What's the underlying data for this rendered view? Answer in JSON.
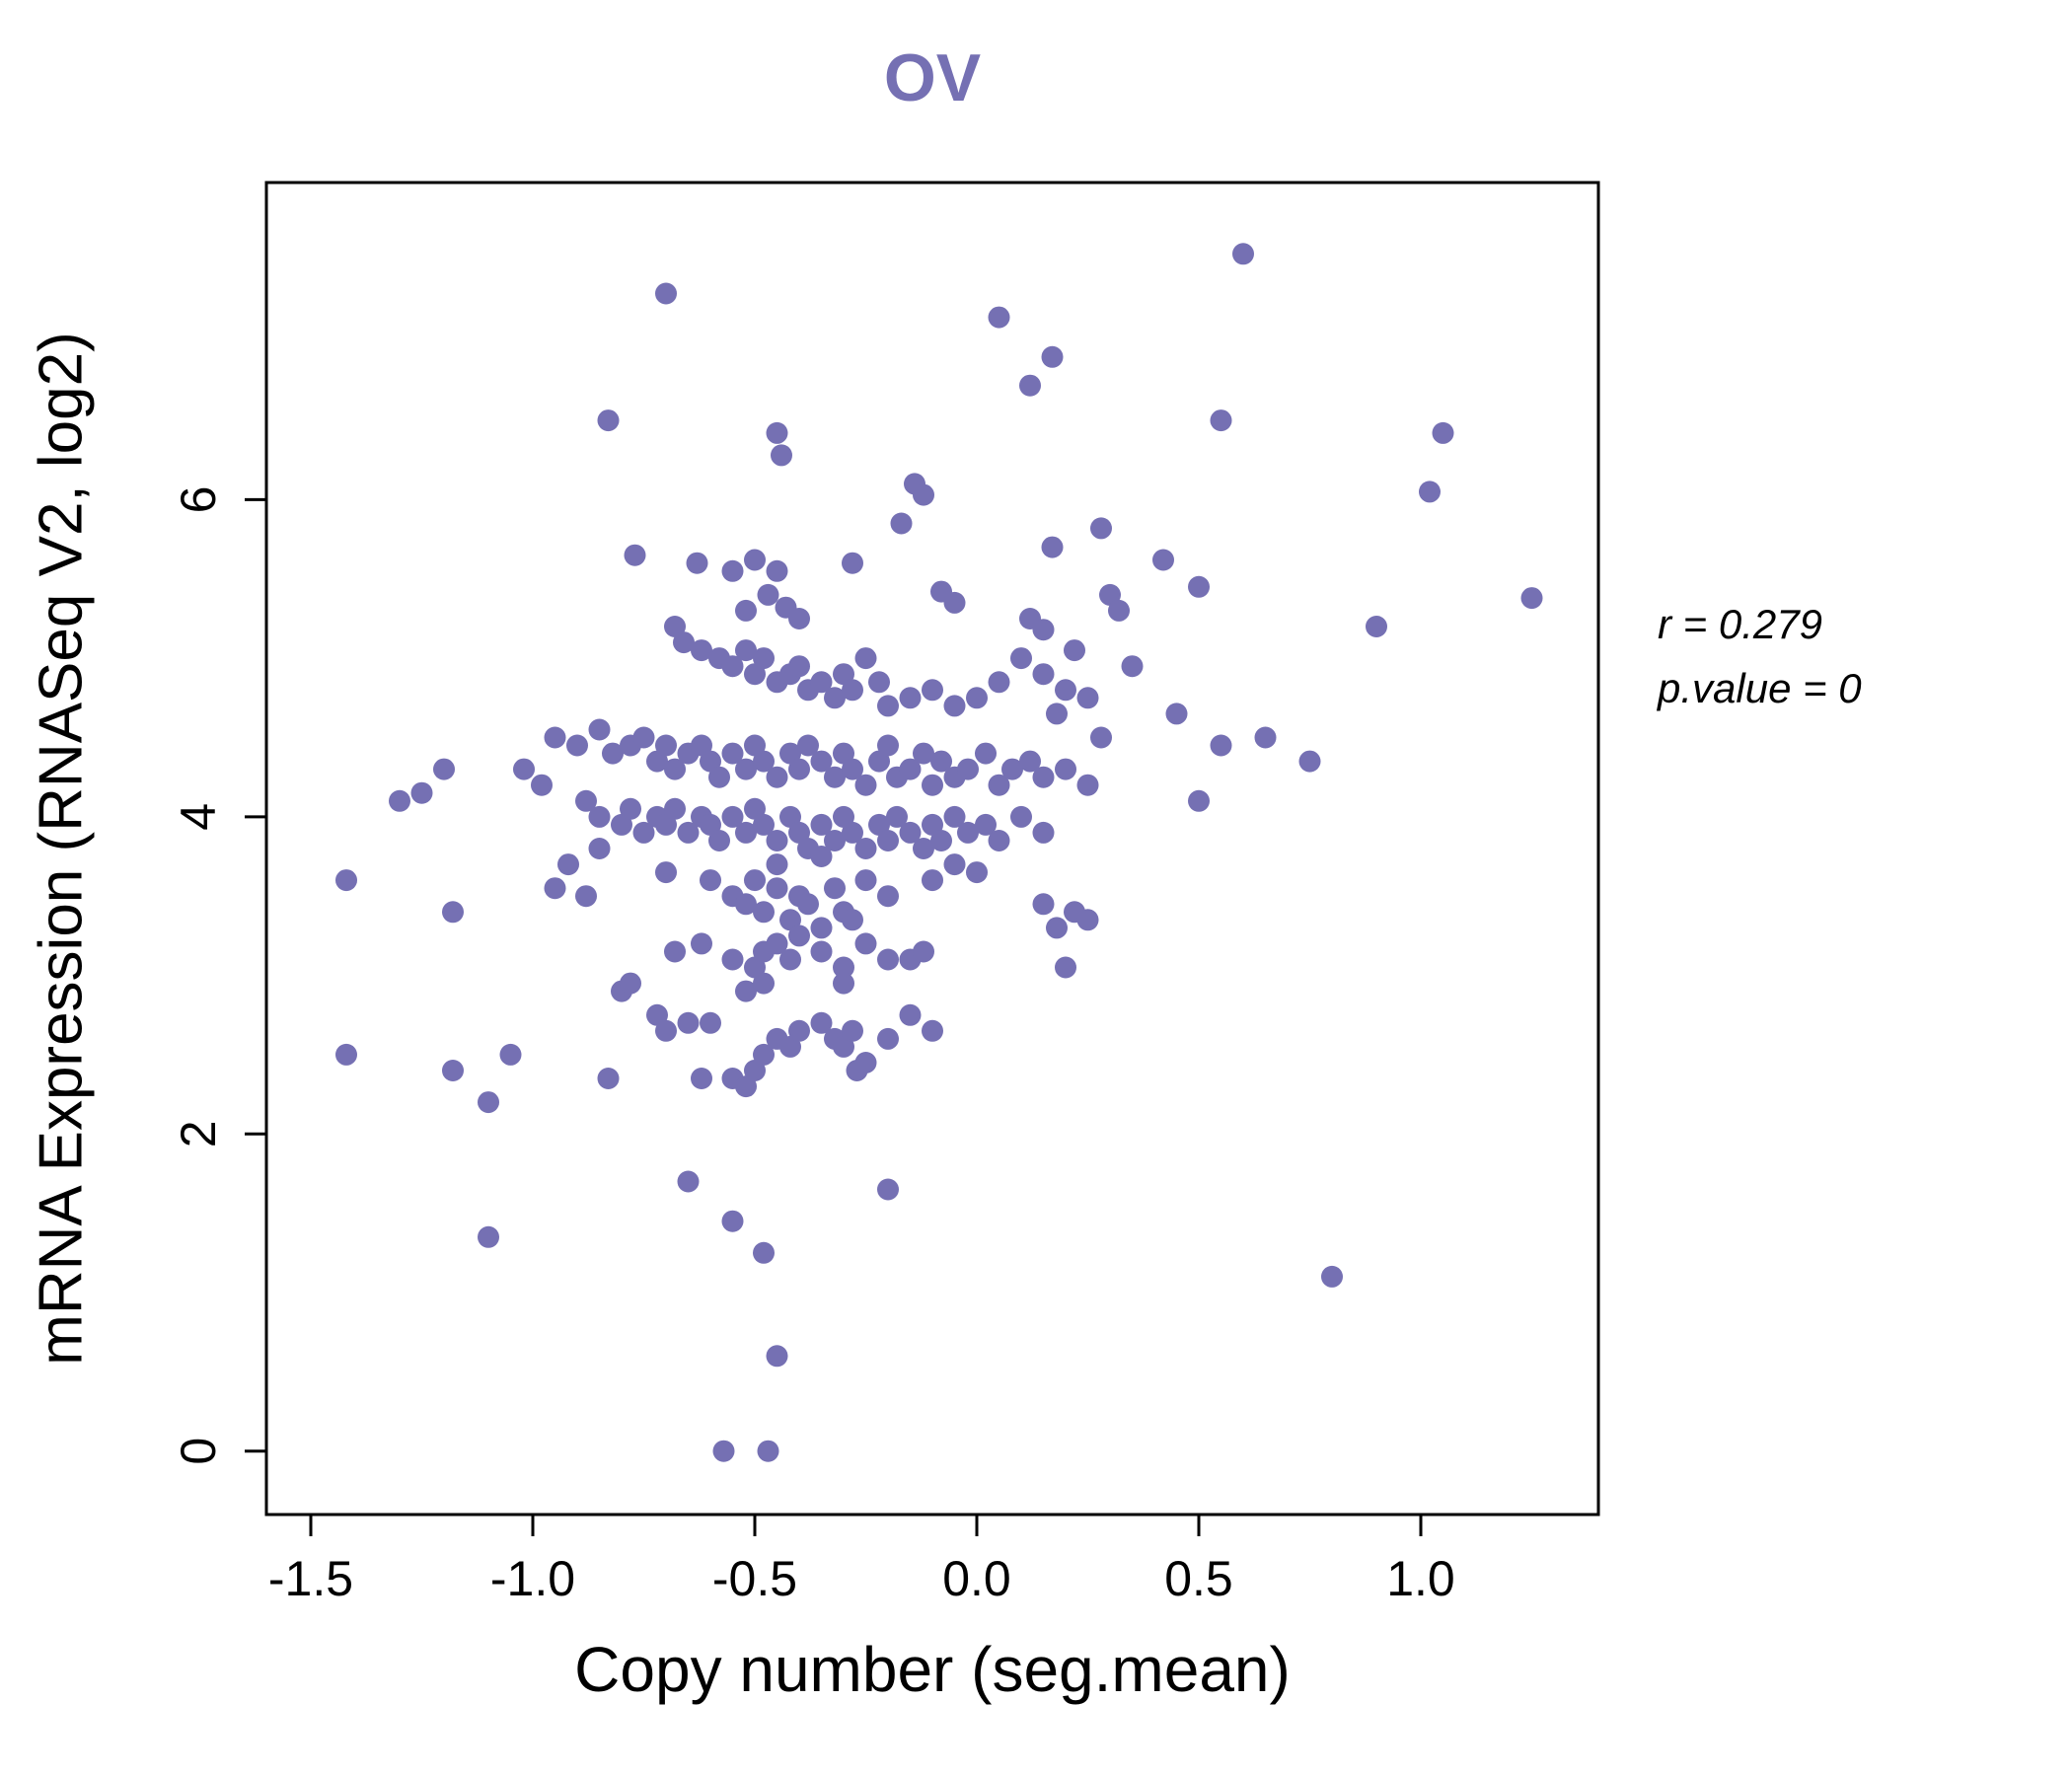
{
  "chart_data": {
    "type": "scatter",
    "title": "OV",
    "xlabel": "Copy number (seg.mean)",
    "ylabel": "mRNA Expression (RNASeq V2, log2)",
    "xlim": [
      -1.6,
      1.4
    ],
    "ylim": [
      -0.4,
      8.0
    ],
    "xticks": [
      -1.5,
      -1.0,
      -0.5,
      0.0,
      0.5,
      1.0
    ],
    "xtick_labels": [
      "-1.5",
      "-1.0",
      "-0.5",
      "0.0",
      "0.5",
      "1.0"
    ],
    "yticks": [
      0,
      2,
      4,
      6
    ],
    "ytick_labels": [
      "0",
      "2",
      "4",
      "6"
    ],
    "grid": false,
    "legend": "none",
    "point_color": "#7570b3",
    "title_color": "#7570b3",
    "annotations": [
      "r = 0.279",
      "p.value = 0"
    ],
    "points": [
      [
        0.6,
        7.55
      ],
      [
        -0.7,
        7.3
      ],
      [
        0.05,
        7.15
      ],
      [
        0.17,
        6.9
      ],
      [
        0.12,
        6.72
      ],
      [
        -0.83,
        6.5
      ],
      [
        0.55,
        6.5
      ],
      [
        1.05,
        6.42
      ],
      [
        -0.45,
        6.42
      ],
      [
        -0.44,
        6.28
      ],
      [
        1.02,
        6.05
      ],
      [
        -0.14,
        6.1
      ],
      [
        -0.12,
        6.03
      ],
      [
        -0.17,
        5.85
      ],
      [
        0.28,
        5.82
      ],
      [
        0.17,
        5.7
      ],
      [
        0.42,
        5.62
      ],
      [
        -0.77,
        5.65
      ],
      [
        -0.63,
        5.6
      ],
      [
        -0.5,
        5.62
      ],
      [
        -0.55,
        5.55
      ],
      [
        -0.45,
        5.55
      ],
      [
        -0.28,
        5.6
      ],
      [
        0.5,
        5.45
      ],
      [
        0.3,
        5.4
      ],
      [
        -0.08,
        5.42
      ],
      [
        -0.05,
        5.35
      ],
      [
        -0.47,
        5.4
      ],
      [
        -0.52,
        5.3
      ],
      [
        -0.43,
        5.32
      ],
      [
        -0.4,
        5.25
      ],
      [
        0.12,
        5.25
      ],
      [
        0.15,
        5.18
      ],
      [
        0.9,
        5.2
      ],
      [
        1.25,
        5.38
      ],
      [
        0.32,
        5.3
      ],
      [
        -0.68,
        5.2
      ],
      [
        -0.66,
        5.1
      ],
      [
        -0.62,
        5.05
      ],
      [
        -0.58,
        5.0
      ],
      [
        -0.55,
        4.95
      ],
      [
        -0.52,
        5.05
      ],
      [
        -0.5,
        4.9
      ],
      [
        -0.48,
        5.0
      ],
      [
        -0.45,
        4.85
      ],
      [
        -0.42,
        4.9
      ],
      [
        -0.4,
        4.95
      ],
      [
        -0.38,
        4.8
      ],
      [
        -0.35,
        4.85
      ],
      [
        -0.32,
        4.75
      ],
      [
        -0.3,
        4.9
      ],
      [
        -0.28,
        4.8
      ],
      [
        -0.25,
        5.0
      ],
      [
        -0.22,
        4.85
      ],
      [
        -0.2,
        4.7
      ],
      [
        -0.15,
        4.75
      ],
      [
        -0.1,
        4.8
      ],
      [
        -0.05,
        4.7
      ],
      [
        0.0,
        4.75
      ],
      [
        0.05,
        4.85
      ],
      [
        0.1,
        5.0
      ],
      [
        0.15,
        4.9
      ],
      [
        0.2,
        4.8
      ],
      [
        0.22,
        5.05
      ],
      [
        0.25,
        4.75
      ],
      [
        0.35,
        4.95
      ],
      [
        0.18,
        4.65
      ],
      [
        0.28,
        4.5
      ],
      [
        0.65,
        4.5
      ],
      [
        0.75,
        4.35
      ],
      [
        0.5,
        4.1
      ],
      [
        0.55,
        4.45
      ],
      [
        0.45,
        4.65
      ],
      [
        -0.95,
        4.5
      ],
      [
        -0.9,
        4.45
      ],
      [
        -0.85,
        4.55
      ],
      [
        -0.82,
        4.4
      ],
      [
        -0.78,
        4.45
      ],
      [
        -0.75,
        4.5
      ],
      [
        -0.72,
        4.35
      ],
      [
        -0.7,
        4.45
      ],
      [
        -0.68,
        4.3
      ],
      [
        -0.65,
        4.4
      ],
      [
        -0.62,
        4.45
      ],
      [
        -0.6,
        4.35
      ],
      [
        -0.58,
        4.25
      ],
      [
        -0.55,
        4.4
      ],
      [
        -0.52,
        4.3
      ],
      [
        -0.5,
        4.45
      ],
      [
        -0.48,
        4.35
      ],
      [
        -0.45,
        4.25
      ],
      [
        -0.42,
        4.4
      ],
      [
        -0.4,
        4.3
      ],
      [
        -0.38,
        4.45
      ],
      [
        -0.35,
        4.35
      ],
      [
        -0.32,
        4.25
      ],
      [
        -0.3,
        4.4
      ],
      [
        -0.28,
        4.3
      ],
      [
        -0.25,
        4.2
      ],
      [
        -0.22,
        4.35
      ],
      [
        -0.2,
        4.45
      ],
      [
        -0.18,
        4.25
      ],
      [
        -0.15,
        4.3
      ],
      [
        -0.12,
        4.4
      ],
      [
        -0.1,
        4.2
      ],
      [
        -0.08,
        4.35
      ],
      [
        -0.05,
        4.25
      ],
      [
        -0.02,
        4.3
      ],
      [
        0.02,
        4.4
      ],
      [
        0.05,
        4.2
      ],
      [
        0.08,
        4.3
      ],
      [
        0.12,
        4.35
      ],
      [
        0.15,
        4.25
      ],
      [
        0.2,
        4.3
      ],
      [
        0.25,
        4.2
      ],
      [
        -1.3,
        4.1
      ],
      [
        -1.25,
        4.15
      ],
      [
        -1.2,
        4.3
      ],
      [
        -1.02,
        4.3
      ],
      [
        -0.98,
        4.2
      ],
      [
        -0.88,
        4.1
      ],
      [
        -0.85,
        4.0
      ],
      [
        -0.8,
        3.95
      ],
      [
        -0.78,
        4.05
      ],
      [
        -0.75,
        3.9
      ],
      [
        -0.72,
        4.0
      ],
      [
        -0.7,
        3.95
      ],
      [
        -0.68,
        4.05
      ],
      [
        -0.65,
        3.9
      ],
      [
        -0.62,
        4.0
      ],
      [
        -0.6,
        3.95
      ],
      [
        -0.58,
        3.85
      ],
      [
        -0.55,
        4.0
      ],
      [
        -0.52,
        3.9
      ],
      [
        -0.5,
        4.05
      ],
      [
        -0.48,
        3.95
      ],
      [
        -0.45,
        3.85
      ],
      [
        -0.42,
        4.0
      ],
      [
        -0.4,
        3.9
      ],
      [
        -0.38,
        3.8
      ],
      [
        -0.35,
        3.95
      ],
      [
        -0.32,
        3.85
      ],
      [
        -0.3,
        4.0
      ],
      [
        -0.28,
        3.9
      ],
      [
        -0.25,
        3.8
      ],
      [
        -0.22,
        3.95
      ],
      [
        -0.2,
        3.85
      ],
      [
        -0.18,
        4.0
      ],
      [
        -0.15,
        3.9
      ],
      [
        -0.12,
        3.8
      ],
      [
        -0.1,
        3.95
      ],
      [
        -0.08,
        3.85
      ],
      [
        -0.05,
        4.0
      ],
      [
        -0.02,
        3.9
      ],
      [
        0.02,
        3.95
      ],
      [
        0.05,
        3.85
      ],
      [
        0.1,
        4.0
      ],
      [
        0.15,
        3.9
      ],
      [
        -1.42,
        3.6
      ],
      [
        -1.18,
        3.4
      ],
      [
        -0.95,
        3.55
      ],
      [
        -0.92,
        3.7
      ],
      [
        -0.88,
        3.5
      ],
      [
        -0.85,
        3.8
      ],
      [
        -0.7,
        3.65
      ],
      [
        -0.6,
        3.6
      ],
      [
        -0.55,
        3.5
      ],
      [
        -0.52,
        3.45
      ],
      [
        -0.5,
        3.6
      ],
      [
        -0.48,
        3.4
      ],
      [
        -0.45,
        3.55
      ],
      [
        -0.45,
        3.7
      ],
      [
        -0.42,
        3.35
      ],
      [
        -0.4,
        3.5
      ],
      [
        -0.38,
        3.45
      ],
      [
        -0.35,
        3.3
      ],
      [
        -0.35,
        3.75
      ],
      [
        -0.32,
        3.55
      ],
      [
        -0.3,
        3.4
      ],
      [
        -0.28,
        3.35
      ],
      [
        -0.25,
        3.6
      ],
      [
        -0.2,
        3.5
      ],
      [
        -0.1,
        3.6
      ],
      [
        -0.05,
        3.7
      ],
      [
        0.0,
        3.65
      ],
      [
        0.15,
        3.45
      ],
      [
        0.18,
        3.3
      ],
      [
        0.22,
        3.4
      ],
      [
        0.25,
        3.35
      ],
      [
        -0.8,
        2.9
      ],
      [
        -0.78,
        2.95
      ],
      [
        -0.68,
        3.15
      ],
      [
        -0.62,
        3.2
      ],
      [
        -0.55,
        3.1
      ],
      [
        -0.52,
        2.9
      ],
      [
        -0.5,
        3.05
      ],
      [
        -0.48,
        3.15
      ],
      [
        -0.48,
        2.95
      ],
      [
        -0.45,
        3.2
      ],
      [
        -0.42,
        3.1
      ],
      [
        -0.4,
        3.25
      ],
      [
        -0.35,
        3.15
      ],
      [
        -0.3,
        3.05
      ],
      [
        -0.3,
        2.95
      ],
      [
        -0.25,
        3.2
      ],
      [
        -0.2,
        3.1
      ],
      [
        -0.15,
        3.1
      ],
      [
        -0.12,
        3.15
      ],
      [
        0.2,
        3.05
      ],
      [
        -0.83,
        2.35
      ],
      [
        -0.72,
        2.75
      ],
      [
        -0.7,
        2.65
      ],
      [
        -0.65,
        2.7
      ],
      [
        -0.62,
        2.35
      ],
      [
        -0.6,
        2.7
      ],
      [
        -0.55,
        2.35
      ],
      [
        -0.52,
        2.3
      ],
      [
        -0.5,
        2.4
      ],
      [
        -0.48,
        2.5
      ],
      [
        -0.45,
        2.6
      ],
      [
        -0.42,
        2.55
      ],
      [
        -0.4,
        2.65
      ],
      [
        -0.35,
        2.7
      ],
      [
        -0.32,
        2.6
      ],
      [
        -0.3,
        2.55
      ],
      [
        -0.28,
        2.65
      ],
      [
        -0.27,
        2.4
      ],
      [
        -0.25,
        2.45
      ],
      [
        -0.2,
        2.6
      ],
      [
        -0.15,
        2.75
      ],
      [
        -0.1,
        2.65
      ],
      [
        -1.42,
        2.5
      ],
      [
        -1.18,
        2.4
      ],
      [
        -1.1,
        2.2
      ],
      [
        -1.05,
        2.5
      ],
      [
        -0.65,
        1.7
      ],
      [
        -0.2,
        1.65
      ],
      [
        -0.55,
        1.45
      ],
      [
        -1.1,
        1.35
      ],
      [
        -0.48,
        1.25
      ],
      [
        0.8,
        1.1
      ],
      [
        -0.45,
        0.6
      ],
      [
        -0.57,
        0.0
      ],
      [
        -0.47,
        0.0
      ]
    ]
  }
}
